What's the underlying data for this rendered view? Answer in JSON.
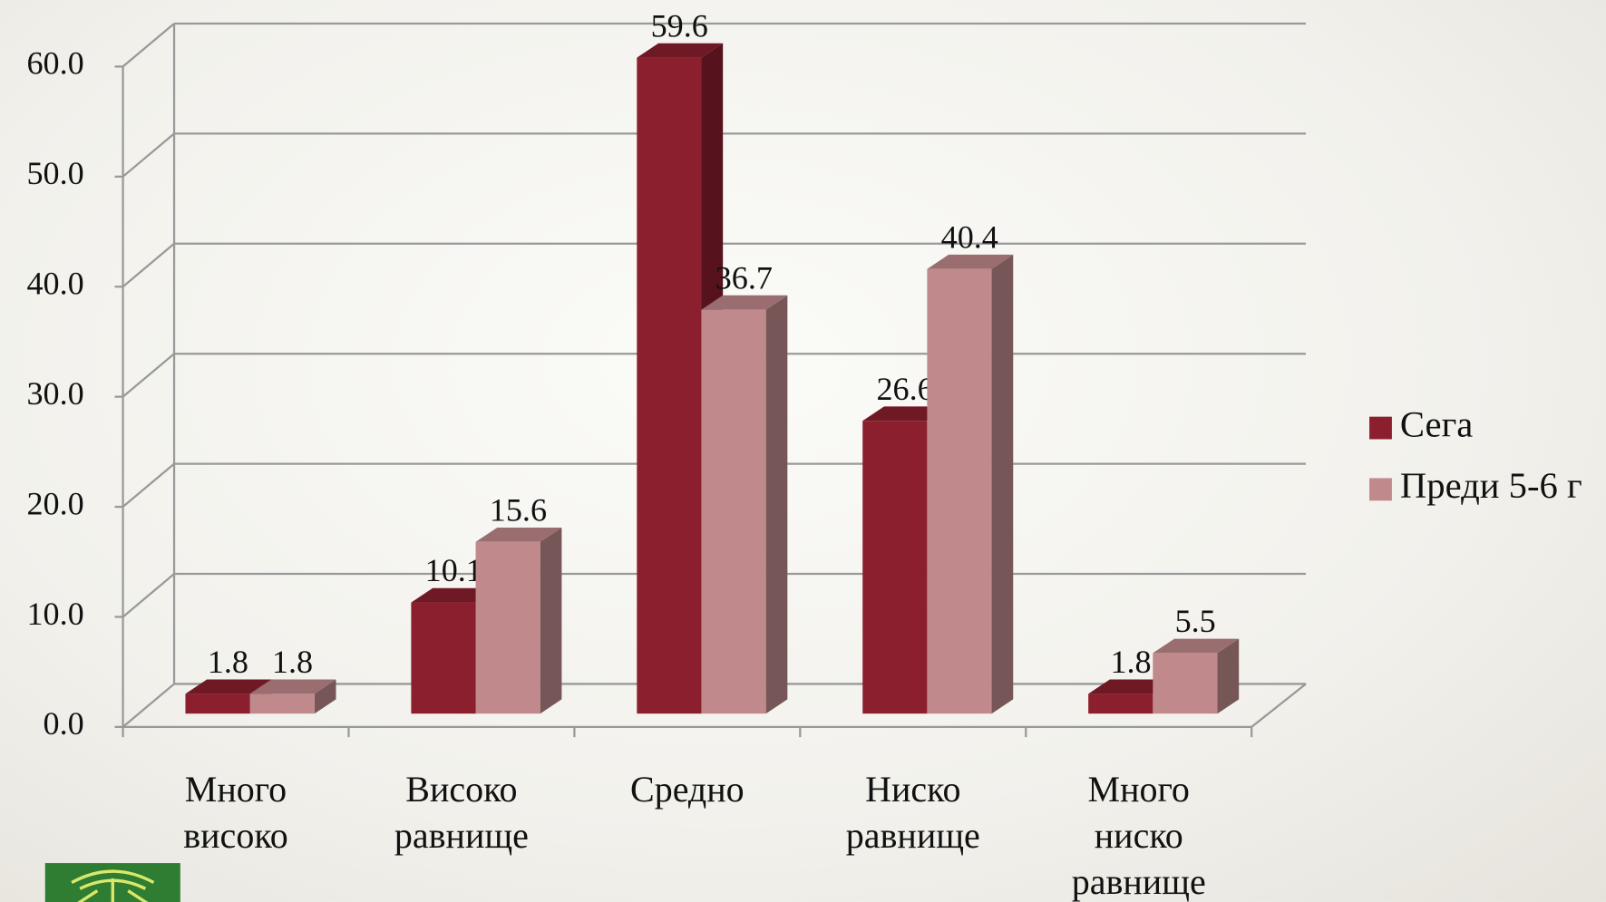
{
  "chart_data": {
    "type": "bar3d",
    "categories": [
      "Много\nвисоко",
      "Високо\nравнище",
      "Средно",
      "Ниско\nравнище",
      "Много\nниско\nравнище"
    ],
    "series": [
      {
        "name": "Сега",
        "color": "#8b1f2e",
        "values": [
          1.8,
          10.1,
          59.6,
          26.6,
          1.8
        ]
      },
      {
        "name": "Преди 5-6 г",
        "color": "#c08a8c",
        "values": [
          1.8,
          15.6,
          36.7,
          40.4,
          5.5
        ]
      }
    ],
    "ylim": [
      0,
      60
    ],
    "yticks": [
      {
        "value": 0,
        "label": "0.0"
      },
      {
        "value": 10,
        "label": "10.0"
      },
      {
        "value": 20,
        "label": "20.0"
      },
      {
        "value": 30,
        "label": "30.0"
      },
      {
        "value": 40,
        "label": "40.0"
      },
      {
        "value": 50,
        "label": "50.0"
      },
      {
        "value": 60,
        "label": "60.0"
      }
    ],
    "grid": true,
    "legend": "right"
  }
}
